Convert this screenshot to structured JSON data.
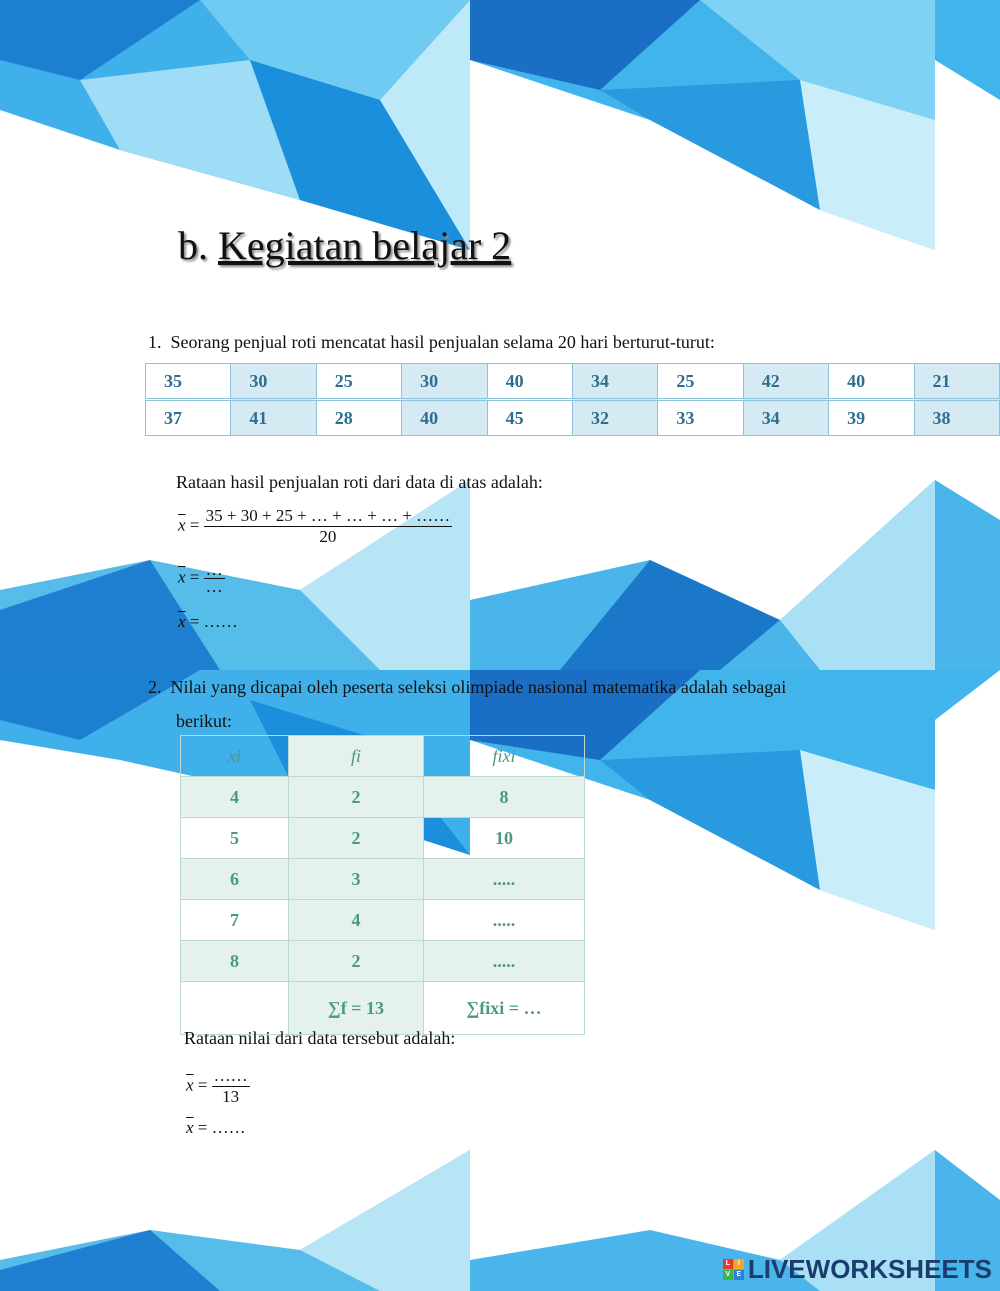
{
  "title_prefix": "b.",
  "title": "Kegiatan belajar 2",
  "q1": {
    "number": "1.",
    "text": "Seorang penjual roti mencatat hasil penjualan selama 20 hari berturut-turut:",
    "rows": [
      [
        "35",
        "30",
        "25",
        "30",
        "40",
        "34",
        "25",
        "42",
        "40",
        "21"
      ],
      [
        "37",
        "41",
        "28",
        "40",
        "45",
        "32",
        "33",
        "34",
        "39",
        "38"
      ]
    ],
    "prompt": "Rataan hasil penjualan roti dari data di atas adalah:",
    "formula1_num": "35 + 30 + 25 + … + … + … + ……",
    "formula1_den": "20",
    "formula2_num": "…",
    "formula2_den": "…",
    "formula3_rhs": "……",
    "xbar": "x",
    "eq": "="
  },
  "q2": {
    "number": "2.",
    "text": "Nilai yang dicapai oleh peserta seleksi olimpiade nasional matematika adalah sebagai",
    "text2": "berikut:",
    "headers": [
      "xi",
      "fi",
      "fixi"
    ],
    "rows": [
      [
        "4",
        "2",
        "8"
      ],
      [
        "5",
        "2",
        "10"
      ],
      [
        "6",
        "3",
        "....."
      ],
      [
        "7",
        "4",
        "....."
      ],
      [
        "8",
        "2",
        "....."
      ]
    ],
    "sum_f": "∑f = 13",
    "sum_fx": "∑fixi = …",
    "prompt": "Rataan nilai dari data tersebut adalah:",
    "formula1_num": "……",
    "formula1_den": "13",
    "formula2_rhs": "……"
  },
  "logo": {
    "text": "LIVEWORKSHEETS",
    "letters": [
      "L",
      "I",
      "V",
      "E"
    ],
    "colors": [
      "#e63b2e",
      "#f5a623",
      "#3bb54a",
      "#2d7fd3"
    ]
  }
}
